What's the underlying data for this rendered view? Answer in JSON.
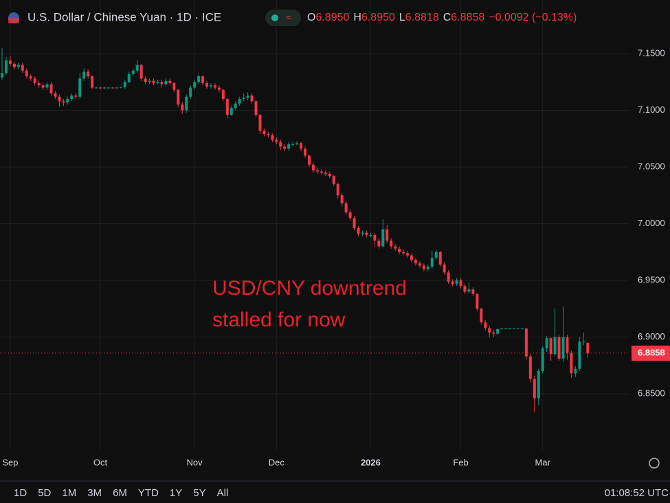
{
  "header": {
    "title": "U.S. Dollar / Chinese Yuan · 1D · ICE",
    "fields": [
      {
        "key": "O",
        "value": "6.8950"
      },
      {
        "key": "H",
        "value": "6.8950"
      },
      {
        "key": "L",
        "value": "6.8818"
      },
      {
        "key": "C",
        "value": "6.8858"
      }
    ],
    "change": "−0.0092 (−0.13%)"
  },
  "chart_data": {
    "type": "candlestick",
    "annotation": [
      "USD/CNY downtrend",
      "stalled for now"
    ],
    "up_color": "#089981",
    "down_color": "#f23645",
    "grid": true,
    "ylim": [
      6.8003,
      7.1973
    ],
    "yticks": [
      {
        "value": 6.85,
        "label": "6.8500"
      },
      {
        "value": 6.9,
        "label": "6.9000"
      },
      {
        "value": 6.95,
        "label": "6.9500"
      },
      {
        "value": 7.0,
        "label": "7.0000"
      },
      {
        "value": 7.05,
        "label": "7.0500"
      },
      {
        "value": 7.1,
        "label": "7.1000"
      },
      {
        "value": 7.15,
        "label": "7.1500"
      }
    ],
    "last_price_label": "6.8858",
    "categories": [
      null,
      null,
      "Sep",
      null,
      null,
      null,
      null,
      null,
      null,
      null,
      null,
      null,
      null,
      null,
      null,
      null,
      null,
      null,
      null,
      null,
      null,
      null,
      null,
      null,
      "Oct",
      null,
      null,
      null,
      null,
      null,
      null,
      null,
      null,
      null,
      null,
      null,
      null,
      null,
      null,
      null,
      null,
      null,
      null,
      null,
      null,
      null,
      null,
      "Nov",
      null,
      null,
      null,
      null,
      null,
      null,
      null,
      null,
      null,
      null,
      null,
      null,
      null,
      null,
      null,
      null,
      null,
      null,
      null,
      "Dec",
      null,
      null,
      null,
      null,
      null,
      null,
      null,
      null,
      null,
      null,
      null,
      null,
      null,
      null,
      null,
      null,
      null,
      null,
      null,
      null,
      null,
      null,
      "2026",
      null,
      null,
      null,
      null,
      null,
      null,
      null,
      null,
      null,
      null,
      null,
      null,
      null,
      null,
      null,
      null,
      null,
      null,
      null,
      null,
      null,
      "Feb",
      null,
      null,
      null,
      null,
      null,
      null,
      null,
      null,
      null,
      null,
      null,
      null,
      null,
      null,
      null,
      null,
      null,
      null,
      null,
      "Mar",
      null,
      null,
      null,
      null,
      null,
      null,
      null,
      null,
      null,
      null,
      null
    ],
    "open": [
      7.129,
      7.133,
      7.144,
      7.141,
      7.138,
      7.14,
      7.135,
      7.13,
      7.128,
      7.124,
      7.122,
      7.12,
      7.123,
      7.115,
      7.112,
      7.108,
      7.107,
      7.11,
      7.113,
      7.112,
      7.128,
      7.134,
      7.13,
      7.12,
      7.12,
      7.1195,
      7.12,
      7.12,
      7.1198,
      7.12,
      7.1205,
      7.125,
      7.132,
      7.135,
      7.14,
      7.128,
      7.125,
      7.126,
      7.124,
      7.125,
      7.123,
      7.126,
      7.124,
      7.118,
      7.105,
      7.1,
      7.112,
      7.12,
      7.125,
      7.13,
      7.124,
      7.121,
      7.122,
      7.12,
      7.118,
      7.11,
      7.096,
      7.102,
      7.106,
      7.11,
      7.111,
      7.113,
      7.108,
      7.096,
      7.082,
      7.079,
      7.078,
      7.074,
      7.072,
      7.068,
      7.066,
      7.07,
      7.07,
      7.071,
      7.066,
      7.06,
      7.052,
      7.047,
      7.046,
      7.045,
      7.044,
      7.042,
      7.035,
      7.025,
      7.018,
      7.01,
      7.005,
      6.996,
      6.991,
      6.992,
      6.99,
      6.99,
      6.985,
      6.98,
      6.995,
      6.985,
      6.98,
      6.978,
      6.975,
      6.974,
      6.972,
      6.968,
      6.965,
      6.963,
      6.96,
      6.962,
      6.97,
      6.975,
      6.964,
      6.957,
      6.949,
      6.947,
      6.95,
      6.945,
      6.94,
      6.942,
      6.938,
      6.925,
      6.913,
      6.908,
      6.904,
      6.903,
      6.907,
      6.9075,
      6.9075,
      6.9075,
      6.9075,
      6.9075,
      6.9075,
      6.883,
      6.863,
      6.846,
      6.87,
      6.89,
      6.899,
      6.885,
      6.9,
      6.881,
      6.9,
      6.886,
      6.868,
      6.872,
      6.896,
      6.895
    ],
    "high": [
      7.155,
      7.147,
      7.148,
      7.143,
      7.142,
      7.142,
      7.137,
      7.132,
      7.13,
      7.126,
      7.124,
      7.125,
      7.125,
      7.117,
      7.114,
      7.11,
      7.112,
      7.115,
      7.115,
      7.133,
      7.137,
      7.136,
      7.131,
      7.1205,
      7.1205,
      7.1205,
      7.1205,
      7.1205,
      7.1205,
      7.121,
      7.127,
      7.134,
      7.137,
      7.144,
      7.141,
      7.13,
      7.128,
      7.128,
      7.127,
      7.127,
      7.128,
      7.128,
      7.125,
      7.119,
      7.107,
      7.114,
      7.122,
      7.127,
      7.132,
      7.131,
      7.126,
      7.124,
      7.124,
      7.122,
      7.119,
      7.111,
      7.104,
      7.108,
      7.112,
      7.115,
      7.116,
      7.115,
      7.109,
      7.097,
      7.084,
      7.081,
      7.08,
      7.076,
      7.074,
      7.07,
      7.072,
      7.072,
      7.073,
      7.072,
      7.068,
      7.061,
      7.054,
      7.049,
      7.048,
      7.047,
      7.046,
      7.043,
      7.036,
      7.027,
      7.02,
      7.012,
      7.007,
      6.998,
      6.994,
      6.994,
      6.992,
      6.992,
      6.987,
      7.004,
      6.999,
      6.987,
      6.982,
      6.98,
      6.977,
      6.976,
      6.974,
      6.97,
      6.967,
      6.965,
      6.964,
      6.976,
      6.977,
      6.976,
      6.966,
      6.959,
      6.951,
      6.952,
      6.952,
      6.947,
      6.948,
      6.944,
      6.939,
      6.926,
      6.915,
      6.91,
      6.906,
      6.908,
      6.9078,
      6.9078,
      6.9078,
      6.9078,
      6.9078,
      6.9078,
      6.908,
      6.885,
      6.866,
      6.872,
      6.892,
      6.901,
      6.9,
      6.925,
      6.902,
      6.927,
      6.902,
      6.888,
      6.874,
      6.9,
      6.904,
      6.895
    ],
    "low": [
      7.127,
      7.131,
      7.139,
      7.136,
      7.136,
      7.133,
      7.128,
      7.126,
      7.122,
      7.12,
      7.118,
      7.118,
      7.113,
      7.11,
      7.103,
      7.104,
      7.105,
      7.108,
      7.11,
      7.11,
      7.126,
      7.128,
      7.119,
      7.1195,
      7.119,
      7.119,
      7.1195,
      7.1193,
      7.1193,
      7.1195,
      7.119,
      7.124,
      7.13,
      7.133,
      7.126,
      7.123,
      7.123,
      7.122,
      7.123,
      7.12,
      7.121,
      7.122,
      7.116,
      7.103,
      7.097,
      7.098,
      7.11,
      7.118,
      7.123,
      7.122,
      7.119,
      7.119,
      7.118,
      7.116,
      7.108,
      7.093,
      7.095,
      7.1,
      7.104,
      7.108,
      7.109,
      7.106,
      7.094,
      7.079,
      7.077,
      7.076,
      7.072,
      7.07,
      7.065,
      7.064,
      7.064,
      7.068,
      7.069,
      7.064,
      7.058,
      7.05,
      7.045,
      7.044,
      7.043,
      7.042,
      7.04,
      7.033,
      7.022,
      7.015,
      7.008,
      7.003,
      6.994,
      6.989,
      6.989,
      6.988,
      6.988,
      6.98,
      6.978,
      6.979,
      6.983,
      6.978,
      6.976,
      6.973,
      6.972,
      6.97,
      6.966,
      6.963,
      6.961,
      6.958,
      6.958,
      6.96,
      6.968,
      6.962,
      6.955,
      6.947,
      6.945,
      6.945,
      6.943,
      6.938,
      6.938,
      6.936,
      6.923,
      6.911,
      6.906,
      6.9,
      6.9,
      6.902,
      6.9072,
      6.9072,
      6.9072,
      6.9072,
      6.9072,
      6.9072,
      6.88,
      6.86,
      6.834,
      6.84,
      6.868,
      6.887,
      6.879,
      6.883,
      6.879,
      6.878,
      6.88,
      6.864,
      6.865,
      6.87,
      6.893,
      6.8818
    ],
    "close": [
      7.133,
      7.144,
      7.141,
      7.138,
      7.14,
      7.135,
      7.13,
      7.128,
      7.124,
      7.122,
      7.12,
      7.123,
      7.115,
      7.112,
      7.108,
      7.107,
      7.11,
      7.113,
      7.112,
      7.128,
      7.134,
      7.13,
      7.12,
      7.12,
      7.1195,
      7.12,
      7.12,
      7.1198,
      7.12,
      7.1205,
      7.125,
      7.132,
      7.135,
      7.14,
      7.128,
      7.125,
      7.126,
      7.124,
      7.125,
      7.123,
      7.126,
      7.124,
      7.118,
      7.105,
      7.1,
      7.112,
      7.12,
      7.125,
      7.13,
      7.124,
      7.121,
      7.122,
      7.12,
      7.118,
      7.11,
      7.096,
      7.102,
      7.106,
      7.11,
      7.111,
      7.113,
      7.108,
      7.096,
      7.082,
      7.079,
      7.078,
      7.074,
      7.072,
      7.068,
      7.066,
      7.07,
      7.07,
      7.071,
      7.066,
      7.06,
      7.052,
      7.047,
      7.046,
      7.045,
      7.044,
      7.042,
      7.035,
      7.025,
      7.018,
      7.01,
      7.005,
      6.996,
      6.991,
      6.992,
      6.99,
      6.99,
      6.985,
      6.98,
      6.995,
      6.985,
      6.98,
      6.978,
      6.975,
      6.974,
      6.972,
      6.968,
      6.965,
      6.963,
      6.96,
      6.962,
      6.97,
      6.975,
      6.964,
      6.957,
      6.949,
      6.947,
      6.95,
      6.945,
      6.94,
      6.942,
      6.938,
      6.925,
      6.913,
      6.908,
      6.904,
      6.903,
      6.907,
      6.9075,
      6.9075,
      6.9075,
      6.9075,
      6.9075,
      6.9075,
      6.883,
      6.863,
      6.846,
      6.87,
      6.89,
      6.899,
      6.885,
      6.9,
      6.881,
      6.9,
      6.886,
      6.868,
      6.872,
      6.896,
      6.896,
      6.8858
    ]
  },
  "toolbar": {
    "ranges": [
      "1D",
      "5D",
      "1M",
      "3M",
      "6M",
      "YTD",
      "1Y",
      "5Y",
      "All"
    ],
    "time": "01:08:52 UTC"
  }
}
